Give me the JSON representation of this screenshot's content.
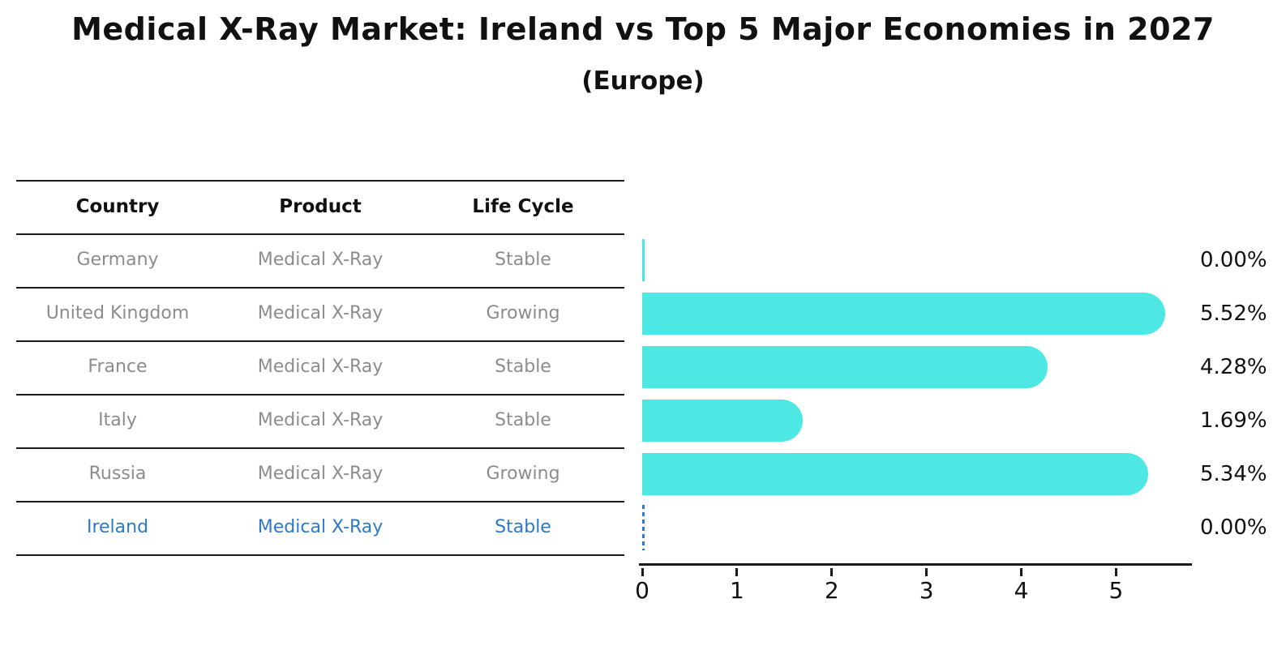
{
  "page": {
    "title": "Medical X-Ray Market: Ireland vs Top 5 Major Economies in 2027",
    "subtitle": "(Europe)"
  },
  "table": {
    "columns": [
      "Country",
      "Product",
      "Life Cycle"
    ],
    "rows": [
      {
        "country": "Germany",
        "product": "Medical X-Ray",
        "life_cycle": "Stable",
        "highlight": false
      },
      {
        "country": "United Kingdom",
        "product": "Medical X-Ray",
        "life_cycle": "Growing",
        "highlight": false
      },
      {
        "country": "France",
        "product": "Medical X-Ray",
        "life_cycle": "Stable",
        "highlight": false
      },
      {
        "country": "Italy",
        "product": "Medical X-Ray",
        "life_cycle": "Stable",
        "highlight": false
      },
      {
        "country": "Russia",
        "product": "Medical X-Ray",
        "life_cycle": "Growing",
        "highlight": false
      },
      {
        "country": "Ireland",
        "product": "Medical X-Ray",
        "life_cycle": "Stable",
        "highlight": true
      }
    ]
  },
  "chart_data": {
    "type": "bar",
    "orientation": "horizontal",
    "title": "Medical X-Ray Market: Ireland vs Top 5 Major Economies in 2027",
    "subtitle": "(Europe)",
    "categories": [
      "Germany",
      "United Kingdom",
      "France",
      "Italy",
      "Russia",
      "Ireland"
    ],
    "values": [
      0.0,
      5.52,
      4.28,
      1.69,
      5.34,
      0.0
    ],
    "value_labels": [
      "0.00%",
      "5.52%",
      "4.28%",
      "1.69%",
      "5.34%",
      "0.00%"
    ],
    "unit": "percent",
    "xticks": [
      0,
      1,
      2,
      3,
      4,
      5
    ],
    "xlim": [
      0,
      5.8
    ],
    "grid": false,
    "legend": "none",
    "highlight_index": 5,
    "highlight_marker": "dashed-line-at-zero"
  },
  "colors": {
    "bar": "#4DE8E4",
    "highlight": "#2E79C7",
    "gray_text": "#8C8C8C",
    "dark_text": "#111111",
    "line": "#1a1a1a",
    "background": "#ffffff"
  }
}
